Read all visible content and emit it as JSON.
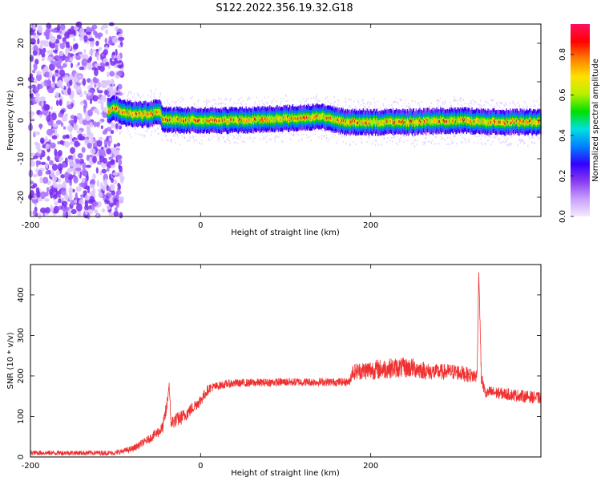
{
  "title": "S122.2022.356.19.32.G18",
  "chart_data": [
    {
      "type": "heatmap",
      "xlabel": "Height of straight line (km)",
      "ylabel": "Frequency (Hz)",
      "xlim": [
        -200,
        400
      ],
      "ylim": [
        -25,
        25
      ],
      "x_ticks": [
        -200,
        0,
        200
      ],
      "y_ticks": [
        -20,
        -10,
        0,
        10,
        20
      ],
      "colorbar": {
        "label": "Normalized spectral amplitude",
        "range": [
          0,
          0.95
        ],
        "ticks": [
          0.0,
          0.2,
          0.4,
          0.6,
          0.8
        ],
        "colormap": [
          "#f4eaff",
          "#c9a0ff",
          "#8a3cf0",
          "#3300ff",
          "#0080ff",
          "#00e0e0",
          "#00e000",
          "#b8f000",
          "#ffe000",
          "#ff8000",
          "#ff0000",
          "#ff1060"
        ]
      },
      "noise_region_x": [
        -200,
        -100
      ],
      "ridge": {
        "description_points_x": [
          -110,
          -100,
          -90,
          -80,
          -60,
          -50,
          -45,
          -40,
          -20,
          0,
          50,
          100,
          140,
          150,
          170,
          200,
          250,
          300,
          350,
          400
        ],
        "frequency_hz": [
          2.5,
          3.0,
          2.0,
          1.5,
          1.5,
          2.5,
          0.5,
          0.0,
          0.0,
          0.0,
          0.0,
          0.5,
          1.0,
          0.5,
          -0.5,
          -0.5,
          -0.5,
          0.0,
          -0.5,
          -0.5
        ]
      }
    },
    {
      "type": "line",
      "xlabel": "Height of straight line (km)",
      "ylabel": "SNR (10 * v/v)",
      "xlim": [
        -200,
        400
      ],
      "ylim": [
        0,
        475
      ],
      "x_ticks": [
        -200,
        0,
        200
      ],
      "y_ticks": [
        0,
        100,
        200,
        300,
        400
      ],
      "series": [
        {
          "color": "#f03030",
          "x": [
            -200,
            -150,
            -100,
            -80,
            -60,
            -45,
            -40,
            -37,
            -35,
            -30,
            -20,
            -10,
            0,
            10,
            20,
            30,
            40,
            60,
            100,
            150,
            175,
            178,
            200,
            230,
            250,
            270,
            300,
            320,
            325,
            327,
            330,
            335,
            340,
            360,
            380,
            400
          ],
          "y": [
            10,
            10,
            10,
            20,
            45,
            70,
            120,
            180,
            85,
            90,
            100,
            120,
            140,
            170,
            175,
            180,
            182,
            183,
            185,
            185,
            185,
            210,
            215,
            220,
            220,
            210,
            210,
            200,
            200,
            460,
            195,
            155,
            160,
            155,
            150,
            145
          ],
          "noise": [
            6,
            6,
            6,
            8,
            10,
            15,
            20,
            10,
            18,
            18,
            18,
            15,
            15,
            12,
            10,
            10,
            10,
            10,
            10,
            10,
            10,
            20,
            25,
            25,
            25,
            20,
            20,
            18,
            18,
            10,
            18,
            12,
            15,
            15,
            15,
            15
          ]
        }
      ]
    }
  ]
}
